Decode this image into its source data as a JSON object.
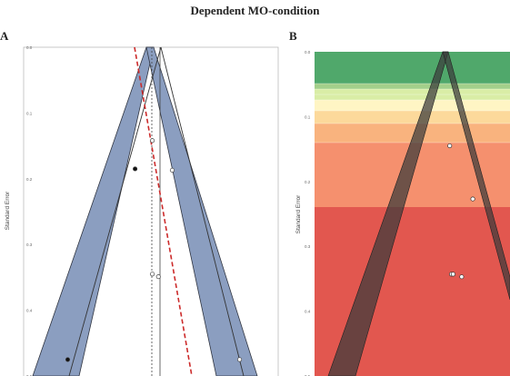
{
  "figure_title": "Dependent MO-condition",
  "panels": {
    "a_label": "A",
    "b_label": "B"
  },
  "colors": {
    "funnel_band": "#8b9ec0",
    "band_edge": "#2f3440",
    "egger_line": "#cc2a2a",
    "contour_regions": [
      "#50a86b",
      "#a3cf8a",
      "#d9eda6",
      "#fff5c4",
      "#fcd99b",
      "#f9b37e",
      "#f5906e",
      "#e2574f"
    ],
    "funnel_dark": "#333333"
  },
  "chart_data": [
    {
      "type": "scatter",
      "panel": "A",
      "subtype": "funnel",
      "title": "",
      "xlabel": "",
      "ylabel": "Standard Error",
      "ylim": [
        0,
        0.5
      ],
      "y_reversed": true,
      "yticks": [
        "0.0",
        "0.1",
        "0.2",
        "0.3",
        "0.4",
        "0.5"
      ],
      "grid": false,
      "series": [
        {
          "marker": "filled",
          "points": [
            {
              "x": -0.22,
              "y": 0.185
            },
            {
              "x": -1.0,
              "y": 0.475
            }
          ]
        },
        {
          "marker": "open",
          "points": [
            {
              "x": -0.02,
              "y": 0.142
            },
            {
              "x": 0.21,
              "y": 0.187
            },
            {
              "x": -0.02,
              "y": 0.345
            },
            {
              "x": 0.05,
              "y": 0.349
            },
            {
              "x": 0.99,
              "y": 0.475
            }
          ]
        }
      ]
    },
    {
      "type": "scatter",
      "panel": "B",
      "subtype": "contour-enhanced funnel",
      "title": "",
      "xlabel": "",
      "ylabel": "Standard Error",
      "ylim": [
        0,
        0.5
      ],
      "y_reversed": true,
      "yticks": [
        "0.0",
        "0.1",
        "0.2",
        "0.3",
        "0.4",
        "0.5"
      ],
      "grid": false,
      "series": [
        {
          "marker": "open",
          "points": [
            {
              "x": 0.05,
              "y": 0.145
            },
            {
              "x": 0.32,
              "y": 0.227
            },
            {
              "x": 0.07,
              "y": 0.343
            },
            {
              "x": 0.09,
              "y": 0.343
            },
            {
              "x": 0.19,
              "y": 0.347
            }
          ]
        }
      ]
    }
  ]
}
